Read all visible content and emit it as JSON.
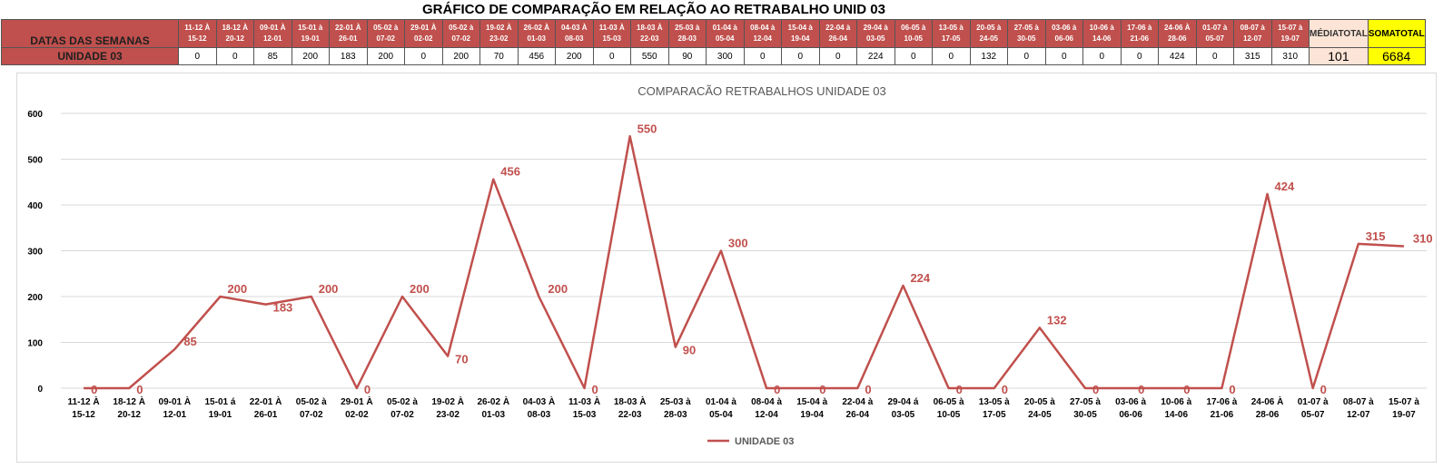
{
  "page_title": "GRÁFICO DE COMPARAÇÃO EM RELAÇÃO AO RETRABALHO UNID 03",
  "table": {
    "header_label": "DATAS DAS SEMANAS",
    "row_label": "UNIDADE 03",
    "media_label": [
      "MÉDIA",
      "TOTAL"
    ],
    "soma_label": [
      "SOMA",
      "TOTAL"
    ],
    "media_value": "101",
    "soma_value": "6684",
    "weeks": [
      [
        "11-12 À",
        "15-12"
      ],
      [
        "18-12 À",
        "20-12"
      ],
      [
        "09-01 À",
        "12-01"
      ],
      [
        "15-01 à",
        "19-01"
      ],
      [
        "22-01 À",
        "26-01"
      ],
      [
        "05-02 à",
        "07-02"
      ],
      [
        "29-01 À",
        "02-02"
      ],
      [
        "05-02 à",
        "07-02"
      ],
      [
        "19-02 À",
        "23-02"
      ],
      [
        "26-02 À",
        "01-03"
      ],
      [
        "04-03 À",
        "08-03"
      ],
      [
        "11-03 À",
        "15-03"
      ],
      [
        "18-03 À",
        "22-03"
      ],
      [
        "25-03 à",
        "28-03"
      ],
      [
        "01-04 à",
        "05-04"
      ],
      [
        "08-04 à",
        "12-04"
      ],
      [
        "15-04 à",
        "19-04"
      ],
      [
        "22-04 à",
        "26-04"
      ],
      [
        "29-04 à",
        "03-05"
      ],
      [
        "06-05 à",
        "10-05"
      ],
      [
        "13-05 à",
        "17-05"
      ],
      [
        "20-05 à",
        "24-05"
      ],
      [
        "27-05 à",
        "30-05"
      ],
      [
        "03-06 à",
        "06-06"
      ],
      [
        "10-06 à",
        "14-06"
      ],
      [
        "17-06 à",
        "21-06"
      ],
      [
        "24-06 À",
        "28-06"
      ],
      [
        "01-07 à",
        "05-07"
      ],
      [
        "08-07 à",
        "12-07"
      ],
      [
        "15-07 à",
        "19-07"
      ]
    ]
  },
  "chart_data": {
    "type": "line",
    "title": "COMPARACÃO RETRABALHOS UNIDADE 03",
    "categories": [
      "11-12 À 15-12",
      "18-12 À 20-12",
      "09-01 À 12-01",
      "15-01 á 19-01",
      "22-01 À 26-01",
      "05-02 à 07-02",
      "29-01 À 02-02",
      "05-02 à 07-02",
      "19-02 À 23-02",
      "26-02 À 01-03",
      "04-03 À 08-03",
      "11-03 À 15-03",
      "18-03 À 22-03",
      "25-03 à 28-03",
      "01-04 à 05-04",
      "08-04 à 12-04",
      "15-04 à 19-04",
      "22-04 à 26-04",
      "29-04 á 03-05",
      "06-05 à 10-05",
      "13-05 à 17-05",
      "20-05 à 24-05",
      "27-05 à 30-05",
      "03-06 à 06-06",
      "10-06 à 14-06",
      "17-06 à 21-06",
      "24-06 À 28-06",
      "01-07 à 05-07",
      "08-07 à 12-07",
      "15-07 à 19-07"
    ],
    "category_lines": [
      [
        "11-12 À",
        "15-12"
      ],
      [
        "18-12 À",
        "20-12"
      ],
      [
        "09-01 À",
        "12-01"
      ],
      [
        "15-01 á",
        "19-01"
      ],
      [
        "22-01 À",
        "26-01"
      ],
      [
        "05-02 à",
        "07-02"
      ],
      [
        "29-01 À",
        "02-02"
      ],
      [
        "05-02 à",
        "07-02"
      ],
      [
        "19-02 À",
        "23-02"
      ],
      [
        "26-02 À",
        "01-03"
      ],
      [
        "04-03 À",
        "08-03"
      ],
      [
        "11-03 À",
        "15-03"
      ],
      [
        "18-03 À",
        "22-03"
      ],
      [
        "25-03 à",
        "28-03"
      ],
      [
        "01-04 à",
        "05-04"
      ],
      [
        "08-04 à",
        "12-04"
      ],
      [
        "15-04 à",
        "19-04"
      ],
      [
        "22-04 à",
        "26-04"
      ],
      [
        "29-04 á",
        "03-05"
      ],
      [
        "06-05 à",
        "10-05"
      ],
      [
        "13-05 à",
        "17-05"
      ],
      [
        "20-05 à",
        "24-05"
      ],
      [
        "27-05 à",
        "30-05"
      ],
      [
        "03-06 à",
        "06-06"
      ],
      [
        "10-06 à",
        "14-06"
      ],
      [
        "17-06 à",
        "21-06"
      ],
      [
        "24-06 À",
        "28-06"
      ],
      [
        "01-07 à",
        "05-07"
      ],
      [
        "08-07 à",
        "12-07"
      ],
      [
        "15-07 à",
        "19-07"
      ]
    ],
    "series": [
      {
        "name": "UNIDADE 03",
        "color": "#c0504d",
        "values": [
          0,
          0,
          85,
          200,
          183,
          200,
          0,
          200,
          70,
          456,
          200,
          0,
          550,
          90,
          300,
          0,
          0,
          0,
          224,
          0,
          0,
          132,
          0,
          0,
          0,
          0,
          424,
          0,
          315,
          310
        ]
      }
    ],
    "ylim": [
      0,
      600
    ],
    "yticks": [
      0,
      100,
      200,
      300,
      400,
      500,
      600
    ],
    "grid": true,
    "legend": "bottom"
  }
}
